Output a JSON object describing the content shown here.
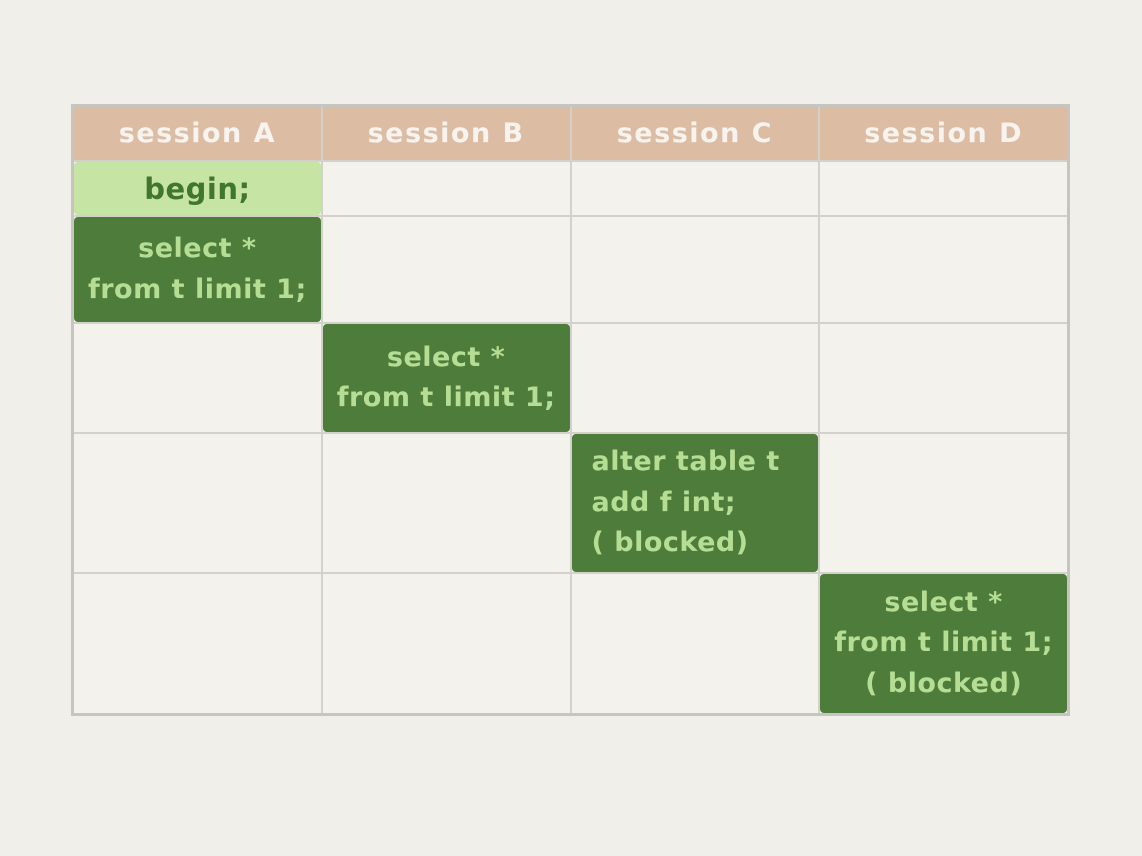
{
  "table": {
    "columns": [
      {
        "label": "session A"
      },
      {
        "label": "session B"
      },
      {
        "label": "session C"
      },
      {
        "label": "session D"
      }
    ],
    "statements": {
      "begin_a": {
        "lines": [
          "begin;"
        ]
      },
      "select_a": {
        "lines": [
          "select *",
          "from t limit 1;"
        ]
      },
      "select_b": {
        "lines": [
          "select *",
          "from t limit 1;"
        ]
      },
      "alter_c": {
        "lines": [
          "alter table t",
          "add f int;",
          "( blocked)"
        ]
      },
      "select_d": {
        "lines": [
          "select *",
          "from t limit 1;",
          "( blocked)"
        ]
      }
    }
  },
  "colors": {
    "page_bg": "#f1efe9",
    "cell_bg": "#f3f2ed",
    "grid_line": "#d2d1cc",
    "header_bg": "#dcbda4",
    "header_text": "#f7f3ee",
    "statement_light_bg": "#c6e4a3",
    "statement_light_text": "#41762f",
    "statement_dark_bg": "#4d7c3b",
    "statement_dark_text": "#b6dd94"
  }
}
